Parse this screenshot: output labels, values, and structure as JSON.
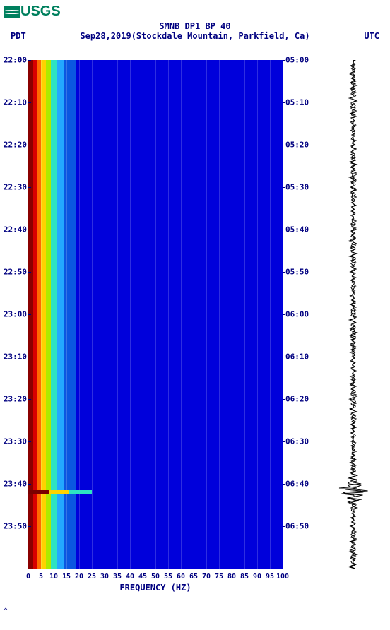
{
  "logo": {
    "text": "USGS"
  },
  "title": "SMNB DP1 BP 40",
  "tz_left": "PDT",
  "date": "Sep28,2019",
  "station": "(Stockdale Mountain, Parkfield, Ca)",
  "tz_right": "UTC",
  "xlabel": "FREQUENCY (HZ)",
  "spectrogram": {
    "type": "spectrogram",
    "background_color": "#0000db",
    "xlim": [
      0,
      100
    ],
    "xtick_step": 5,
    "xticks": [
      "0",
      "5",
      "10",
      "15",
      "20",
      "25",
      "30",
      "35",
      "40",
      "45",
      "50",
      "55",
      "60",
      "65",
      "70",
      "75",
      "80",
      "85",
      "90",
      "95",
      "100"
    ],
    "left_ticks": [
      "22:00",
      "22:10",
      "22:20",
      "22:30",
      "22:40",
      "22:50",
      "23:00",
      "23:10",
      "23:20",
      "23:30",
      "23:40",
      "23:50"
    ],
    "right_ticks": [
      "05:00",
      "05:10",
      "05:20",
      "05:30",
      "05:40",
      "05:50",
      "06:00",
      "06:10",
      "06:20",
      "06:30",
      "06:40",
      "06:50"
    ],
    "time_start_min": 0,
    "time_end_min": 120,
    "grid_color_rgba": "rgba(255,255,255,0.18)",
    "hot_columns": [
      {
        "freq_from": 0,
        "freq_to": 2,
        "color": "#8a0000"
      },
      {
        "freq_from": 2,
        "freq_to": 3.5,
        "color": "#d80000"
      },
      {
        "freq_from": 3.5,
        "freq_to": 5,
        "color": "#ff6a00"
      },
      {
        "freq_from": 5,
        "freq_to": 7,
        "color": "#ffd300"
      },
      {
        "freq_from": 7,
        "freq_to": 9,
        "color": "#aeea00"
      },
      {
        "freq_from": 9,
        "freq_to": 11,
        "color": "#2de3c2"
      },
      {
        "freq_from": 11,
        "freq_to": 14,
        "color": "#23a8ff"
      },
      {
        "freq_from": 14,
        "freq_to": 19,
        "color": "#0b57e0"
      }
    ],
    "event": {
      "time_min": 102,
      "bands": [
        {
          "freq_from": 0,
          "freq_to": 8,
          "color": "#7a0000"
        },
        {
          "freq_from": 8,
          "freq_to": 16,
          "color": "#ffd300"
        },
        {
          "freq_from": 16,
          "freq_to": 25,
          "color": "#2de3c2"
        }
      ]
    }
  },
  "seismogram": {
    "trace_color": "#000000",
    "baseline_amp": 6,
    "event_time_min": 102,
    "event_peak_amp": 28
  },
  "footmark": "^"
}
